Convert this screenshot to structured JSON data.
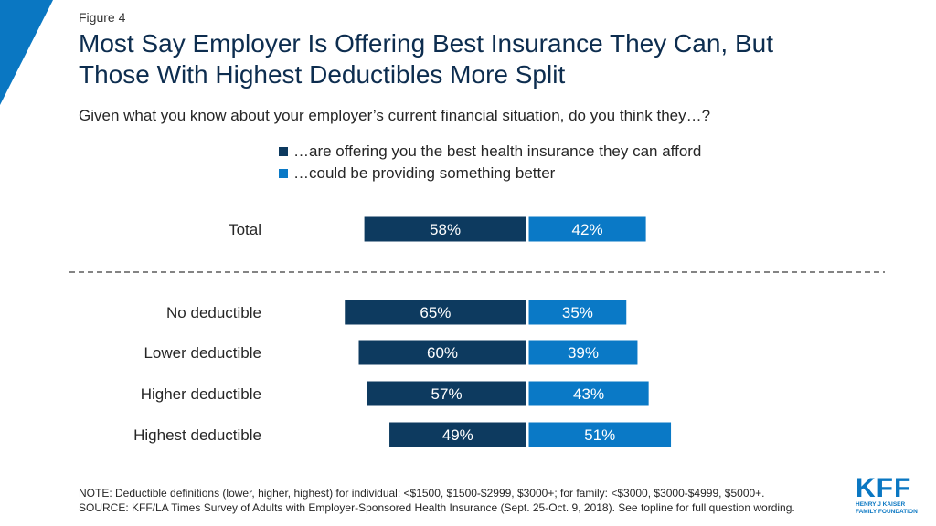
{
  "figure_label": "Figure 4",
  "title_line1": "Most Say Employer Is Offering Best Insurance They Can, But",
  "title_line2": "Those With Highest Deductibles More Split",
  "subtitle": "Given what you know about your employer’s current financial situation, do you think they…?",
  "colors": {
    "series1": "#0d3a5f",
    "series2": "#0a79c6",
    "accent": "#0a77c2"
  },
  "chart_data": {
    "type": "bar",
    "orientation": "horizontal-diverging",
    "categories": [
      "Total",
      "No deductible",
      "Lower deductible",
      "Higher deductible",
      "Highest deductible"
    ],
    "series": [
      {
        "name": "…are offering you the best health insurance they can afford",
        "values": [
          58,
          65,
          60,
          57,
          49
        ],
        "labels": [
          "58%",
          "65%",
          "60%",
          "57%",
          "49%"
        ]
      },
      {
        "name": "…could be providing something better",
        "values": [
          42,
          35,
          39,
          43,
          51
        ],
        "labels": [
          "42%",
          "35%",
          "39%",
          "43%",
          "51%"
        ]
      }
    ],
    "legend_position": "top",
    "separator_after_category": "Total",
    "grid": false
  },
  "note_line1": "NOTE: Deductible definitions (lower, higher, highest) for individual: <$1500, $1500-$2999, $3000+; for family: <$3000, $3000-$4999, $5000+.",
  "note_line2": "SOURCE: KFF/LA Times Survey of Adults with Employer-Sponsored Health Insurance (Sept. 25-Oct. 9, 2018). See topline for full question wording.",
  "logo": {
    "mark": "KFF",
    "line1": "HENRY J KAISER",
    "line2": "FAMILY FOUNDATION"
  }
}
